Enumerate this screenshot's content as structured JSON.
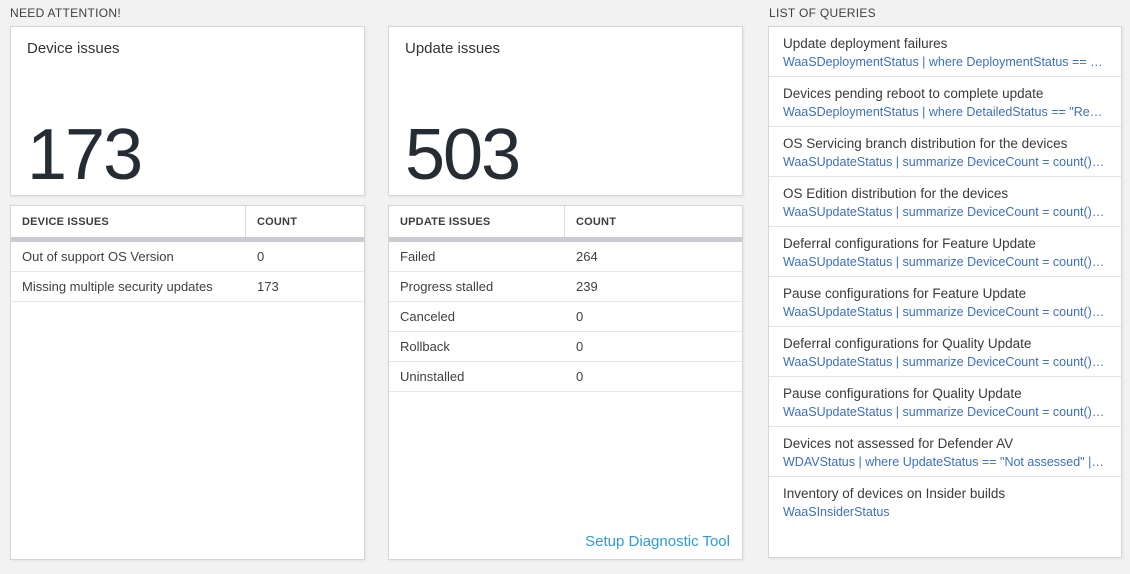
{
  "colors": {
    "page_background": "#f2f2f2",
    "big_number_text": "#252c33",
    "query_text_blue": "#3e6fbe",
    "action_link_blue": "#2e9bd5",
    "table_scrollbar_gray": "#c9cdd2"
  },
  "sections": {
    "need_attention": {
      "title": "NEED ATTENTION!",
      "cards": [
        {
          "title": "Device issues",
          "count": "173",
          "table": {
            "headers": [
              "DEVICE ISSUES",
              "COUNT"
            ],
            "rows": [
              [
                "Out of support OS Version",
                "0"
              ],
              [
                "Missing multiple security updates",
                "173"
              ]
            ]
          }
        },
        {
          "title": "Update issues",
          "count": "503",
          "table": {
            "headers": [
              "UPDATE ISSUES",
              "COUNT"
            ],
            "rows": [
              [
                "Failed",
                "264"
              ],
              [
                "Progress stalled",
                "239"
              ],
              [
                "Canceled",
                "0"
              ],
              [
                "Rollback",
                "0"
              ],
              [
                "Uninstalled",
                "0"
              ]
            ]
          },
          "footer_link": "Setup Diagnostic Tool"
        }
      ]
    },
    "queries": {
      "title": "LIST OF QUERIES",
      "items": [
        {
          "title": "Update deployment failures",
          "query": "WaaSDeploymentStatus | where DeploymentStatus == \"Failed\" |..."
        },
        {
          "title": "Devices pending reboot to complete update",
          "query": "WaaSDeploymentStatus | where DetailedStatus == \"Reboot pend..."
        },
        {
          "title": "OS Servicing branch distribution for the devices",
          "query": "WaaSUpdateStatus | summarize DeviceCount = count() by OSSer..."
        },
        {
          "title": "OS Edition distribution for the devices",
          "query": "WaaSUpdateStatus | summarize DeviceCount = count() by OSEdit..."
        },
        {
          "title": "Deferral configurations for Feature Update",
          "query": "WaaSUpdateStatus | summarize DeviceCount = count() by Featur..."
        },
        {
          "title": "Pause configurations for Feature Update",
          "query": "WaaSUpdateStatus | summarize DeviceCount = count() by Featur..."
        },
        {
          "title": "Deferral configurations for Quality Update",
          "query": "WaaSUpdateStatus | summarize DeviceCount = count() by Qualit..."
        },
        {
          "title": "Pause configurations for Quality Update",
          "query": "WaaSUpdateStatus | summarize DeviceCount = count() by Qualit..."
        },
        {
          "title": "Devices not assessed for Defender AV",
          "query": "WDAVStatus | where UpdateStatus == \"Not assessed\" | render ta..."
        },
        {
          "title": "Inventory of devices on Insider builds",
          "query": "WaaSInsiderStatus"
        }
      ]
    }
  }
}
